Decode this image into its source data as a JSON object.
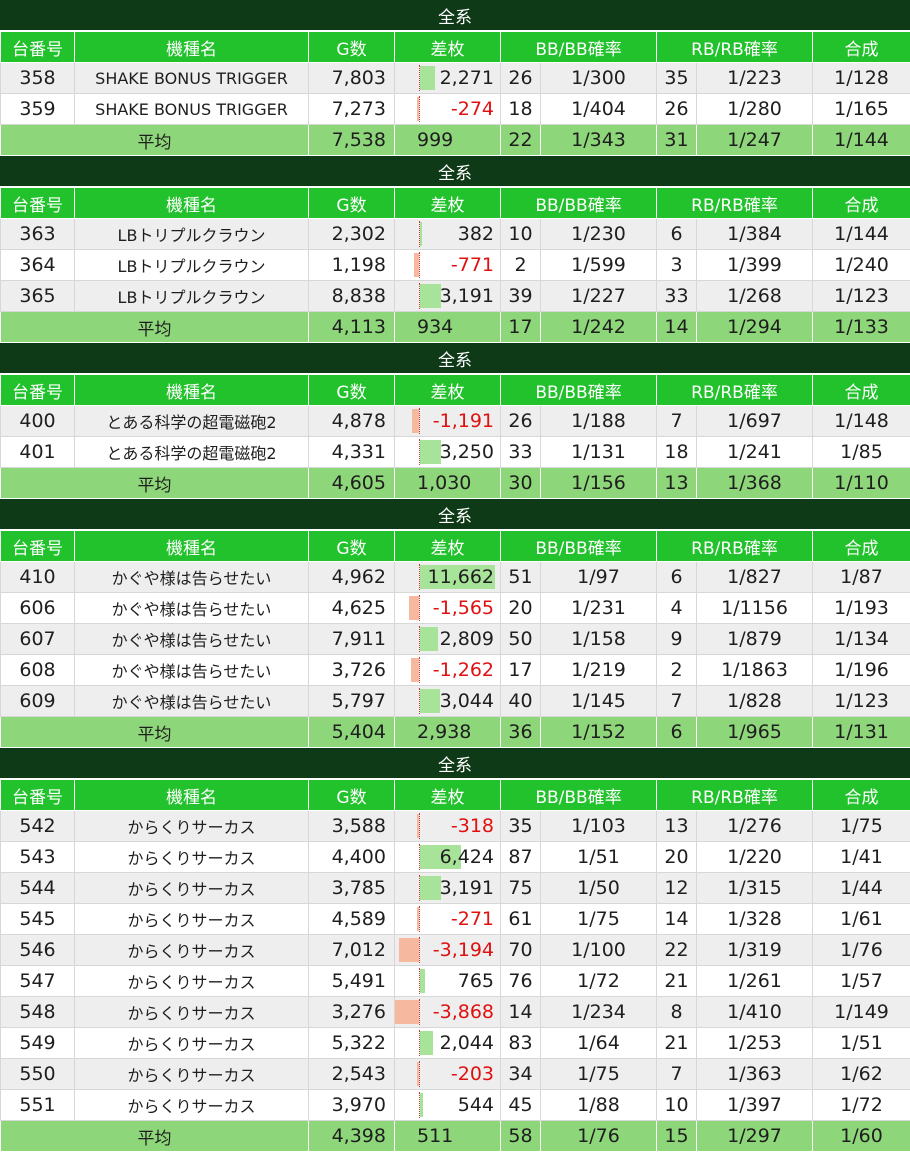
{
  "headers": [
    "台番号",
    "機種名",
    "G数",
    "差枚",
    "BB/BB確率",
    "RB/RB確率",
    "合成"
  ],
  "avg_label": "平均",
  "colors": {
    "title_bg": "#0f3a17",
    "header_bg": "#22c22c",
    "avg_bg": "#8ed67a",
    "positive_bar": "#a8e39a",
    "negative_bar": "#f6b9a0",
    "negative_text": "#e01010"
  },
  "sections": [
    {
      "title": "全系",
      "rows": [
        {
          "no": "358",
          "name": "SHAKE BONUS TRIGGER",
          "g": "7,803",
          "diff": "2,271",
          "diff_value": 2271,
          "bb": "26",
          "bb_rate": "1/300",
          "rb": "35",
          "rb_rate": "1/223",
          "total": "1/128"
        },
        {
          "no": "359",
          "name": "SHAKE BONUS TRIGGER",
          "g": "7,273",
          "diff": "-274",
          "diff_value": -274,
          "bb": "18",
          "bb_rate": "1/404",
          "rb": "26",
          "rb_rate": "1/280",
          "total": "1/165"
        }
      ],
      "avg": {
        "g": "7,538",
        "diff": "999",
        "bb": "22",
        "bb_rate": "1/343",
        "rb": "31",
        "rb_rate": "1/247",
        "total": "1/144"
      }
    },
    {
      "title": "全系",
      "rows": [
        {
          "no": "363",
          "name": "LBトリプルクラウン",
          "g": "2,302",
          "diff": "382",
          "diff_value": 382,
          "bb": "10",
          "bb_rate": "1/230",
          "rb": "6",
          "rb_rate": "1/384",
          "total": "1/144"
        },
        {
          "no": "364",
          "name": "LBトリプルクラウン",
          "g": "1,198",
          "diff": "-771",
          "diff_value": -771,
          "bb": "2",
          "bb_rate": "1/599",
          "rb": "3",
          "rb_rate": "1/399",
          "total": "1/240"
        },
        {
          "no": "365",
          "name": "LBトリプルクラウン",
          "g": "8,838",
          "diff": "3,191",
          "diff_value": 3191,
          "bb": "39",
          "bb_rate": "1/227",
          "rb": "33",
          "rb_rate": "1/268",
          "total": "1/123"
        }
      ],
      "avg": {
        "g": "4,113",
        "diff": "934",
        "bb": "17",
        "bb_rate": "1/242",
        "rb": "14",
        "rb_rate": "1/294",
        "total": "1/133"
      }
    },
    {
      "title": "全系",
      "rows": [
        {
          "no": "400",
          "name": "とある科学の超電磁砲2",
          "g": "4,878",
          "diff": "-1,191",
          "diff_value": -1191,
          "bb": "26",
          "bb_rate": "1/188",
          "rb": "7",
          "rb_rate": "1/697",
          "total": "1/148"
        },
        {
          "no": "401",
          "name": "とある科学の超電磁砲2",
          "g": "4,331",
          "diff": "3,250",
          "diff_value": 3250,
          "bb": "33",
          "bb_rate": "1/131",
          "rb": "18",
          "rb_rate": "1/241",
          "total": "1/85"
        }
      ],
      "avg": {
        "g": "4,605",
        "diff": "1,030",
        "bb": "30",
        "bb_rate": "1/156",
        "rb": "13",
        "rb_rate": "1/368",
        "total": "1/110"
      }
    },
    {
      "title": "全系",
      "rows": [
        {
          "no": "410",
          "name": "かぐや様は告らせたい",
          "g": "4,962",
          "diff": "11,662",
          "diff_value": 11662,
          "bb": "51",
          "bb_rate": "1/97",
          "rb": "6",
          "rb_rate": "1/827",
          "total": "1/87"
        },
        {
          "no": "606",
          "name": "かぐや様は告らせたい",
          "g": "4,625",
          "diff": "-1,565",
          "diff_value": -1565,
          "bb": "20",
          "bb_rate": "1/231",
          "rb": "4",
          "rb_rate": "1/1156",
          "total": "1/193"
        },
        {
          "no": "607",
          "name": "かぐや様は告らせたい",
          "g": "7,911",
          "diff": "2,809",
          "diff_value": 2809,
          "bb": "50",
          "bb_rate": "1/158",
          "rb": "9",
          "rb_rate": "1/879",
          "total": "1/134"
        },
        {
          "no": "608",
          "name": "かぐや様は告らせたい",
          "g": "3,726",
          "diff": "-1,262",
          "diff_value": -1262,
          "bb": "17",
          "bb_rate": "1/219",
          "rb": "2",
          "rb_rate": "1/1863",
          "total": "1/196"
        },
        {
          "no": "609",
          "name": "かぐや様は告らせたい",
          "g": "5,797",
          "diff": "3,044",
          "diff_value": 3044,
          "bb": "40",
          "bb_rate": "1/145",
          "rb": "7",
          "rb_rate": "1/828",
          "total": "1/123"
        }
      ],
      "avg": {
        "g": "5,404",
        "diff": "2,938",
        "bb": "36",
        "bb_rate": "1/152",
        "rb": "6",
        "rb_rate": "1/965",
        "total": "1/131"
      }
    },
    {
      "title": "全系",
      "rows": [
        {
          "no": "542",
          "name": "からくりサーカス",
          "g": "3,588",
          "diff": "-318",
          "diff_value": -318,
          "bb": "35",
          "bb_rate": "1/103",
          "rb": "13",
          "rb_rate": "1/276",
          "total": "1/75"
        },
        {
          "no": "543",
          "name": "からくりサーカス",
          "g": "4,400",
          "diff": "6,424",
          "diff_value": 6424,
          "bb": "87",
          "bb_rate": "1/51",
          "rb": "20",
          "rb_rate": "1/220",
          "total": "1/41"
        },
        {
          "no": "544",
          "name": "からくりサーカス",
          "g": "3,785",
          "diff": "3,191",
          "diff_value": 3191,
          "bb": "75",
          "bb_rate": "1/50",
          "rb": "12",
          "rb_rate": "1/315",
          "total": "1/44"
        },
        {
          "no": "545",
          "name": "からくりサーカス",
          "g": "4,589",
          "diff": "-271",
          "diff_value": -271,
          "bb": "61",
          "bb_rate": "1/75",
          "rb": "14",
          "rb_rate": "1/328",
          "total": "1/61"
        },
        {
          "no": "546",
          "name": "からくりサーカス",
          "g": "7,012",
          "diff": "-3,194",
          "diff_value": -3194,
          "bb": "70",
          "bb_rate": "1/100",
          "rb": "22",
          "rb_rate": "1/319",
          "total": "1/76"
        },
        {
          "no": "547",
          "name": "からくりサーカス",
          "g": "5,491",
          "diff": "765",
          "diff_value": 765,
          "bb": "76",
          "bb_rate": "1/72",
          "rb": "21",
          "rb_rate": "1/261",
          "total": "1/57"
        },
        {
          "no": "548",
          "name": "からくりサーカス",
          "g": "3,276",
          "diff": "-3,868",
          "diff_value": -3868,
          "bb": "14",
          "bb_rate": "1/234",
          "rb": "8",
          "rb_rate": "1/410",
          "total": "1/149"
        },
        {
          "no": "549",
          "name": "からくりサーカス",
          "g": "5,322",
          "diff": "2,044",
          "diff_value": 2044,
          "bb": "83",
          "bb_rate": "1/64",
          "rb": "21",
          "rb_rate": "1/253",
          "total": "1/51"
        },
        {
          "no": "550",
          "name": "からくりサーカス",
          "g": "2,543",
          "diff": "-203",
          "diff_value": -203,
          "bb": "34",
          "bb_rate": "1/75",
          "rb": "7",
          "rb_rate": "1/363",
          "total": "1/62"
        },
        {
          "no": "551",
          "name": "からくりサーカス",
          "g": "3,970",
          "diff": "544",
          "diff_value": 544,
          "bb": "45",
          "bb_rate": "1/88",
          "rb": "10",
          "rb_rate": "1/397",
          "total": "1/72"
        }
      ],
      "avg": {
        "g": "4,398",
        "diff": "511",
        "bb": "58",
        "bb_rate": "1/76",
        "rb": "15",
        "rb_rate": "1/297",
        "total": "1/60"
      }
    }
  ]
}
